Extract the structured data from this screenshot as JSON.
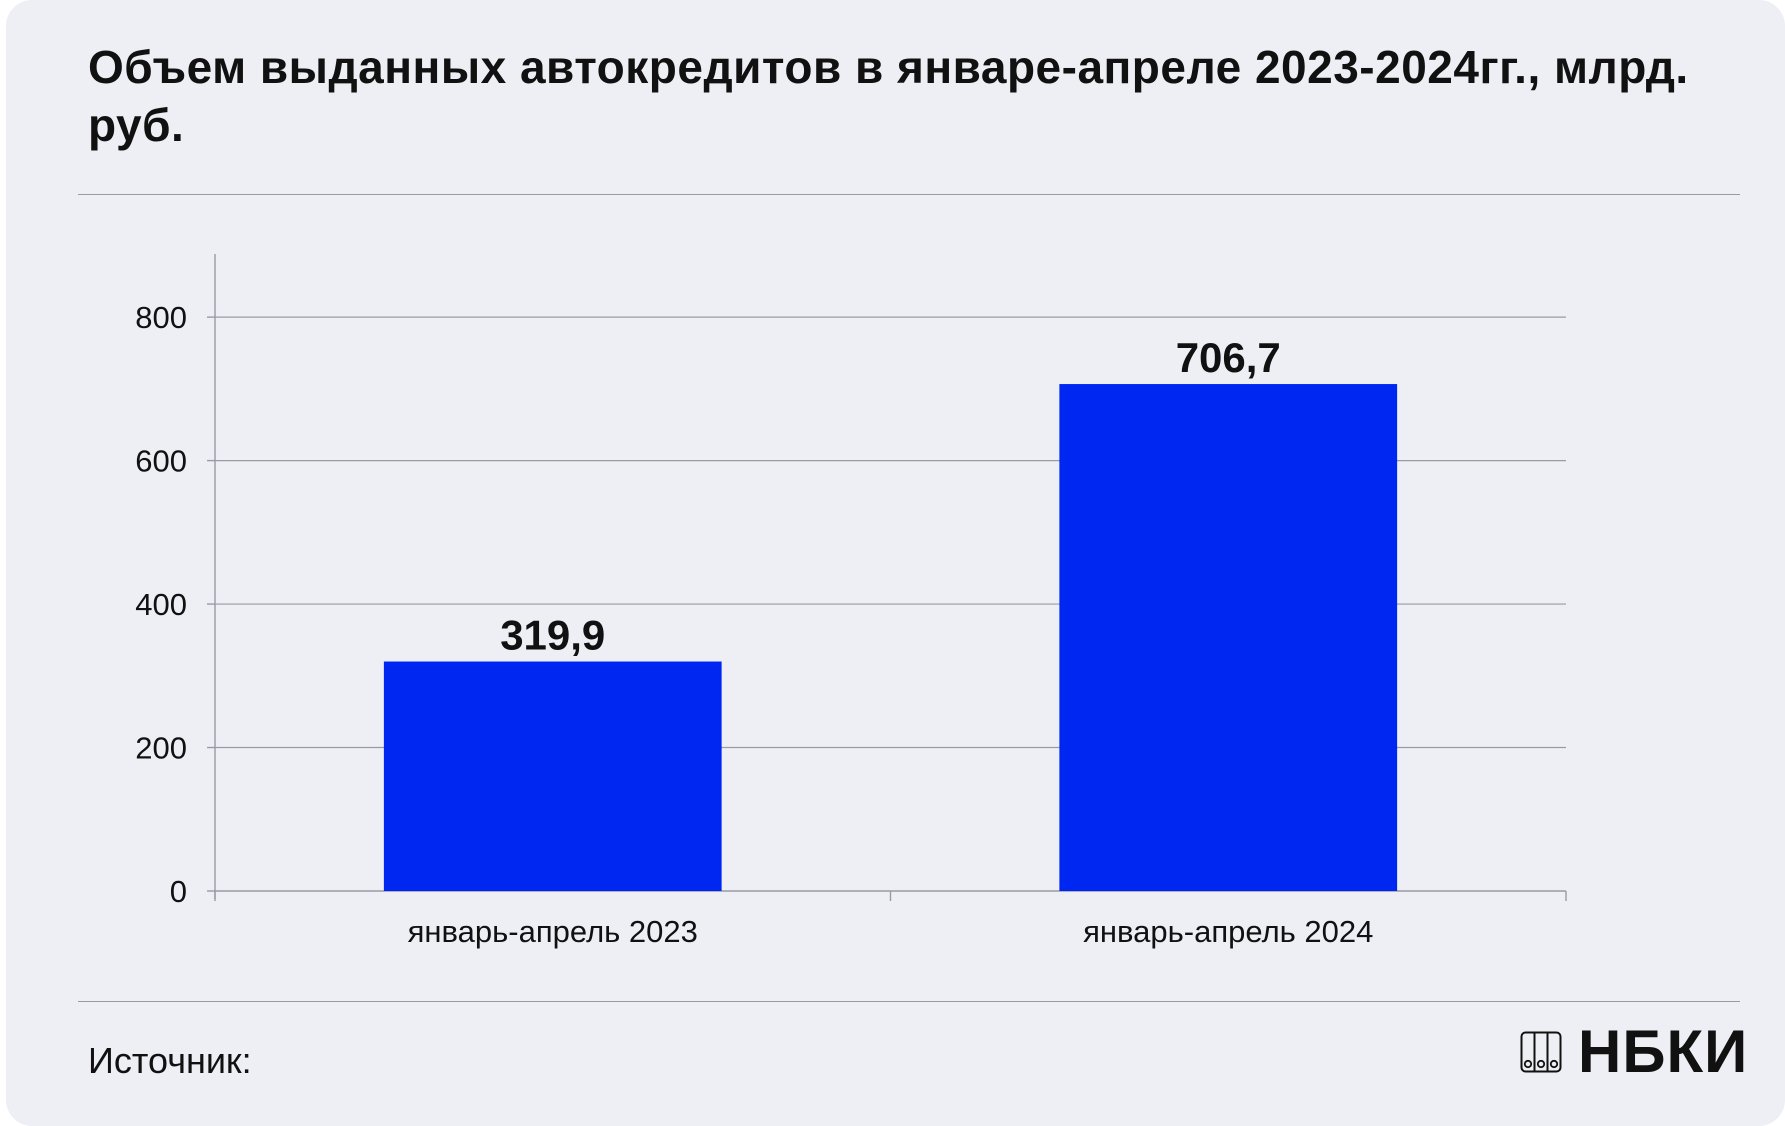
{
  "title": "Объем выданных автокредитов в январе-апреле 2023-2024гг., млрд. руб.",
  "source_label": "Источник:",
  "logo": {
    "text": "НБКИ",
    "icon": "nbki-logo-icon"
  },
  "colors": {
    "bar": "#0026f2",
    "background": "#eeeff5",
    "grid": "#9a9aa6",
    "text": "#111111"
  },
  "chart_data": {
    "type": "bar",
    "title": "Объем выданных автокредитов в январе-апреле 2023-2024гг., млрд. руб.",
    "xlabel": "",
    "ylabel": "",
    "categories": [
      "январь-апрель 2023",
      "январь-апрель 2024"
    ],
    "values": [
      319.9,
      706.7
    ],
    "value_labels": [
      "319,9",
      "706,7"
    ],
    "ylim": [
      0,
      800
    ],
    "yticks": [
      0,
      200,
      400,
      600,
      800
    ],
    "ytick_labels": [
      "0",
      "200",
      "400",
      "600",
      "800"
    ],
    "grid": true,
    "legend": "none"
  }
}
